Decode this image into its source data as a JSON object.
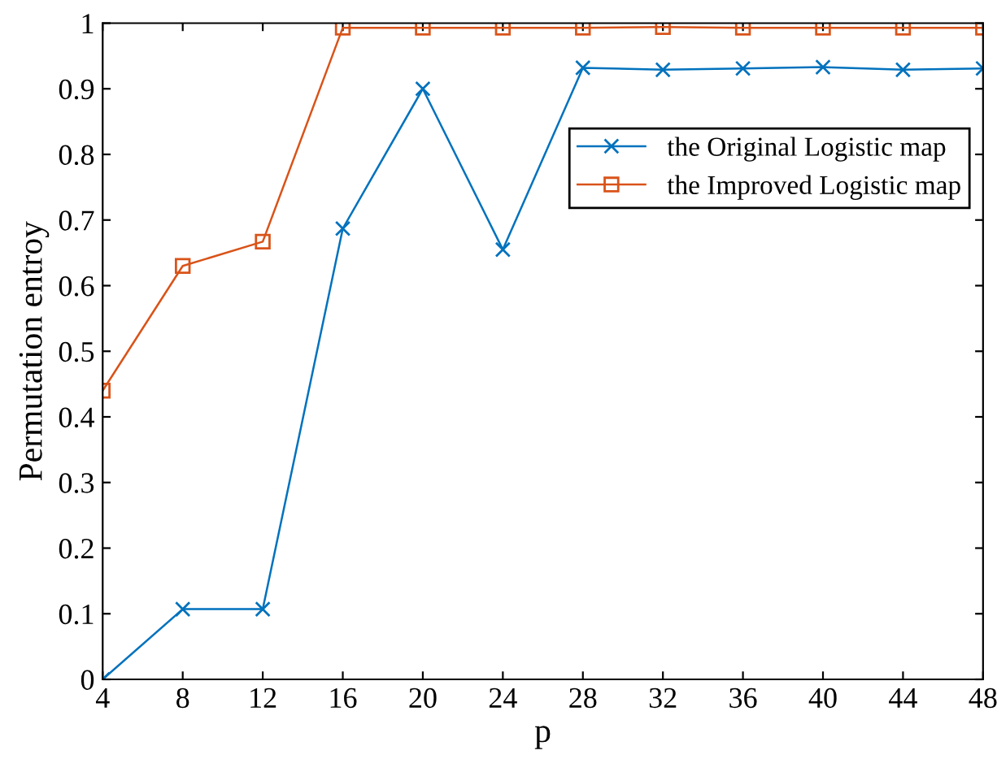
{
  "chart_data": {
    "type": "line",
    "xlabel": "p",
    "ylabel": "Permutation entroy",
    "x": [
      4,
      8,
      12,
      16,
      20,
      24,
      28,
      32,
      36,
      40,
      44,
      48
    ],
    "series": [
      {
        "name": "the Original Logistic map",
        "color": "#0072bd",
        "marker": "cross",
        "values": [
          0,
          0.107,
          0.107,
          0.687,
          0.9,
          0.655,
          0.932,
          0.929,
          0.931,
          0.933,
          0.929,
          0.931
        ]
      },
      {
        "name": "the Improved Logistic map",
        "color": "#d95319",
        "marker": "square",
        "values": [
          0.44,
          0.63,
          0.667,
          0.993,
          0.993,
          0.993,
          0.993,
          0.994,
          0.993,
          0.993,
          0.993,
          0.993
        ]
      }
    ],
    "xlim": [
      4,
      48
    ],
    "xticks": [
      4,
      8,
      12,
      16,
      20,
      24,
      28,
      32,
      36,
      40,
      44,
      48
    ],
    "ylim": [
      0,
      1
    ],
    "yticks": [
      0,
      0.1,
      0.2,
      0.3,
      0.4,
      0.5,
      0.6,
      0.7,
      0.8,
      0.9,
      1
    ],
    "grid": false,
    "legend": "top right",
    "line_style": "solid"
  }
}
